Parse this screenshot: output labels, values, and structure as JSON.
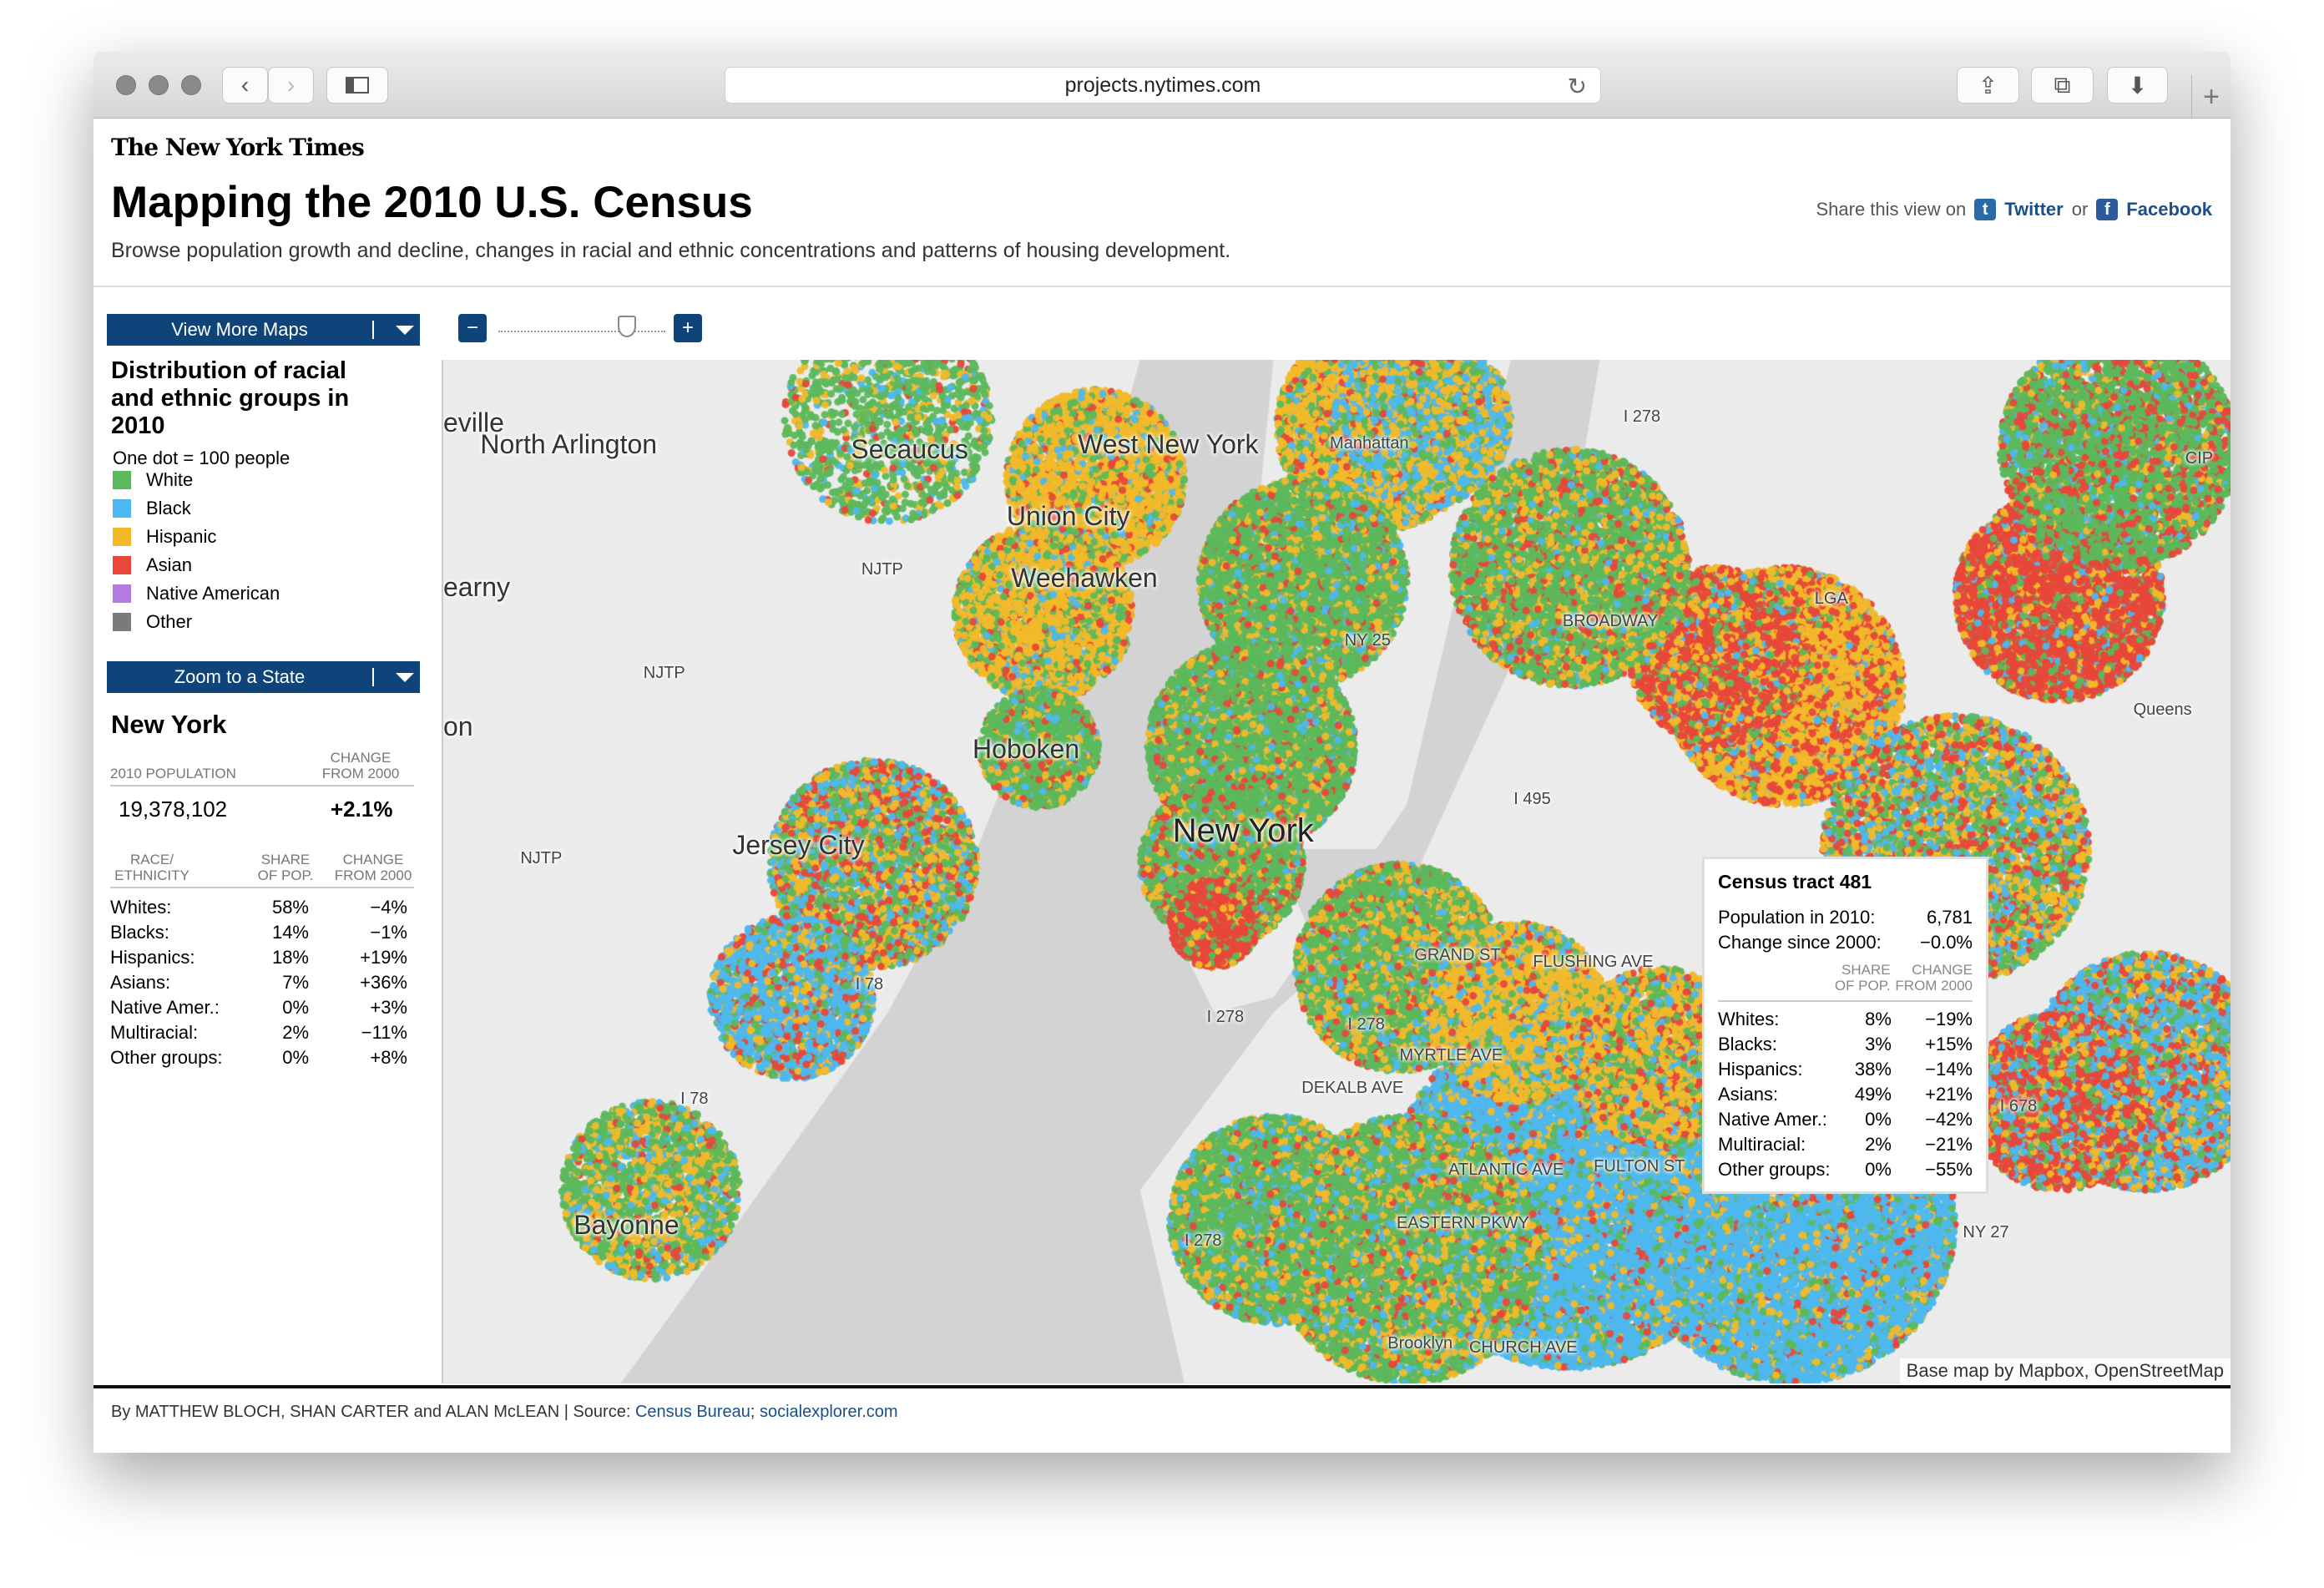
{
  "browser": {
    "url": "projects.nytimes.com"
  },
  "header": {
    "logo": "The New York Times",
    "title": "Mapping the 2010 U.S. Census",
    "subtitle": "Browse population growth and decline, changes in racial and ethnic concentrations and patterns of housing development.",
    "share_prefix": "Share this view on",
    "twitter": "Twitter",
    "or": "or",
    "facebook": "Facebook"
  },
  "sidebar": {
    "view_more_maps": "View More Maps",
    "map_title": "Distribution of racial and ethnic groups in 2010",
    "one_dot": "One dot = 100 people",
    "legend": [
      {
        "label": "White",
        "color": "#5cb85c"
      },
      {
        "label": "Black",
        "color": "#4db8ef"
      },
      {
        "label": "Hispanic",
        "color": "#f2b92a"
      },
      {
        "label": "Asian",
        "color": "#e8473a"
      },
      {
        "label": "Native American",
        "color": "#b57ae0"
      },
      {
        "label": "Other",
        "color": "#7a7a7a"
      }
    ],
    "zoom_to_state": "Zoom to a State",
    "state": {
      "name": "New York",
      "pop_label": "2010 POPULATION",
      "change_label_1": "CHANGE",
      "change_label_2": "FROM 2000",
      "population": "19,378,102",
      "change": "+2.1%",
      "col_race_1": "RACE/",
      "col_race_2": "ETHNICITY",
      "col_share_1": "SHARE",
      "col_share_2": "OF POP.",
      "col_change_1": "CHANGE",
      "col_change_2": "FROM 2000",
      "rows": [
        {
          "label": "Whites:",
          "share": "58%",
          "change": "−4%"
        },
        {
          "label": "Blacks:",
          "share": "14%",
          "change": "−1%"
        },
        {
          "label": "Hispanics:",
          "share": "18%",
          "change": "+19%"
        },
        {
          "label": "Asians:",
          "share": "7%",
          "change": "+36%"
        },
        {
          "label": "Native Amer.:",
          "share": "0%",
          "change": "+3%"
        },
        {
          "label": "Multiracial:",
          "share": "2%",
          "change": "−11%"
        },
        {
          "label": "Other groups:",
          "share": "0%",
          "change": "+8%"
        }
      ]
    }
  },
  "map": {
    "zoom_level": 0.8,
    "labels": [
      "North Arlington",
      "Secaucus",
      "West New York",
      "Union City",
      "Weehawken",
      "Hoboken",
      "Jersey City",
      "New York",
      "Bayonne",
      "Manhattan",
      "Brooklyn",
      "eville",
      "earny",
      "on"
    ],
    "road_labels": [
      "NJTP",
      "NJTP",
      "NJTP",
      "I 78",
      "I 78",
      "I 278",
      "I 278",
      "I 278",
      "I 495",
      "NY 25",
      "I 278",
      "FULTON ST",
      "ATLANTIC AVE",
      "EASTERN PKWY",
      "CHURCH AVE",
      "MYRTLE AVE",
      "DEKALB AVE",
      "BROADWAY",
      "GRAND ST",
      "FLUSHING AVE",
      "LGA",
      "CIP",
      "NY 27",
      "I 678",
      "Queens"
    ],
    "attribution": "Base map by Mapbox, OpenStreetMap",
    "water_color": "#d3d3d3",
    "land_color": "#ebebeb"
  },
  "tooltip": {
    "title": "Census tract 481",
    "pop_label": "Population in 2010:",
    "pop": "6,781",
    "change_label": "Change since 2000:",
    "change": "−0.0%",
    "col_share_1": "SHARE",
    "col_share_2": "OF POP.",
    "col_change_1": "CHANGE",
    "col_change_2": "FROM 2000",
    "rows": [
      {
        "label": "Whites:",
        "share": "8%",
        "change": "−19%"
      },
      {
        "label": "Blacks:",
        "share": "3%",
        "change": "+15%"
      },
      {
        "label": "Hispanics:",
        "share": "38%",
        "change": "−14%"
      },
      {
        "label": "Asians:",
        "share": "49%",
        "change": "+21%"
      },
      {
        "label": "Native Amer.:",
        "share": "0%",
        "change": "−42%"
      },
      {
        "label": "Multiracial:",
        "share": "2%",
        "change": "−21%"
      },
      {
        "label": "Other groups:",
        "share": "0%",
        "change": "−55%"
      }
    ]
  },
  "footer": {
    "byline": "By MATTHEW BLOCH, SHAN CARTER and ALAN McLEAN | Source: ",
    "source1": "Census Bureau",
    "sep": "; ",
    "source2": "socialexplorer.com"
  }
}
